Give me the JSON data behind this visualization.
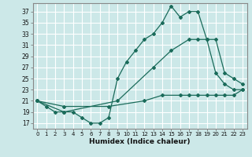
{
  "xlabel": "Humidex (Indice chaleur)",
  "xlim": [
    -0.5,
    23.5
  ],
  "ylim": [
    16,
    38.5
  ],
  "yticks": [
    17,
    19,
    21,
    23,
    25,
    27,
    29,
    31,
    33,
    35,
    37
  ],
  "xticks": [
    0,
    1,
    2,
    3,
    4,
    5,
    6,
    7,
    8,
    9,
    10,
    11,
    12,
    13,
    14,
    15,
    16,
    17,
    18,
    19,
    20,
    21,
    22,
    23
  ],
  "bg_color": "#cce8e8",
  "grid_color": "#ffffff",
  "line_color": "#1a6b5a",
  "line1": {
    "x": [
      0,
      1,
      2,
      3,
      4,
      5,
      6,
      7,
      8,
      9,
      10,
      11,
      12,
      13,
      14,
      15,
      16,
      17,
      18,
      19,
      20,
      21,
      22,
      23
    ],
    "y": [
      21,
      20,
      19,
      19,
      19,
      18,
      17,
      17,
      18,
      25,
      28,
      30,
      32,
      33,
      35,
      38,
      36,
      37,
      37,
      32,
      26,
      24,
      23,
      23
    ]
  },
  "line2": {
    "x": [
      0,
      3,
      9,
      13,
      15,
      17,
      18,
      19,
      20,
      21,
      22,
      23
    ],
    "y": [
      21,
      19,
      21,
      27,
      30,
      32,
      32,
      32,
      32,
      26,
      25,
      24
    ]
  },
  "line3": {
    "x": [
      0,
      3,
      8,
      12,
      14,
      16,
      17,
      18,
      19,
      20,
      21,
      22,
      23
    ],
    "y": [
      21,
      20,
      20,
      21,
      22,
      22,
      22,
      22,
      22,
      22,
      22,
      22,
      23
    ]
  }
}
